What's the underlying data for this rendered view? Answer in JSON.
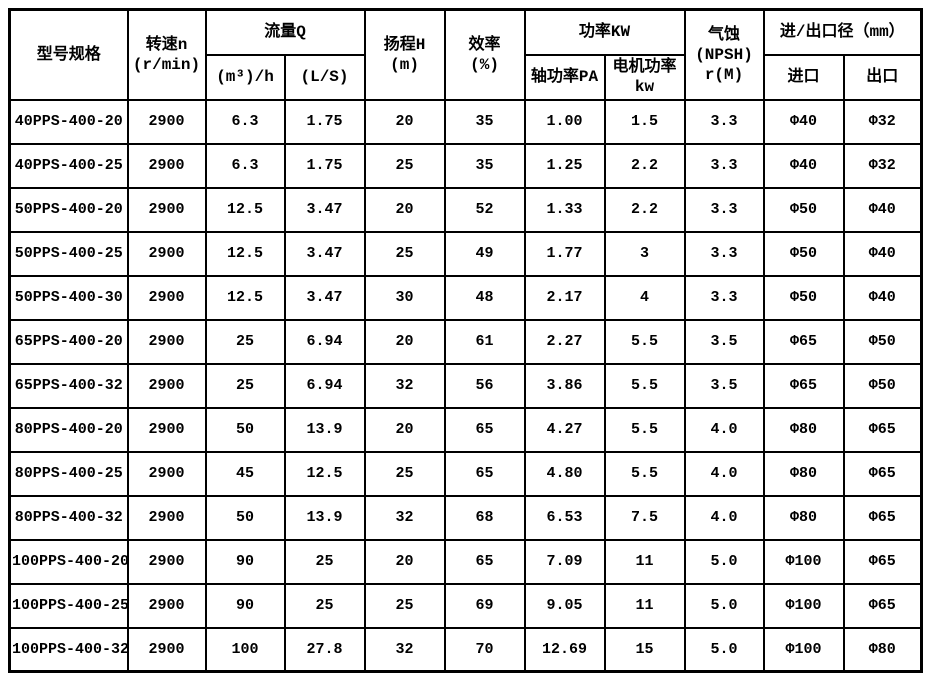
{
  "colors": {
    "border": "#000000",
    "background": "#ffffff",
    "text": "#000000"
  },
  "table": {
    "headers": {
      "model": "型号规格",
      "speed": "转速n",
      "speed_unit": "(r/min)",
      "flow": "流量Q",
      "flow_m3h": "(m³)/h",
      "flow_ls": "(L/S)",
      "head": "扬程H",
      "head_unit": "(m)",
      "efficiency": "效率",
      "efficiency_unit": "(%)",
      "power": "功率KW",
      "shaft_power": "轴功率PA",
      "motor_power": "电机功率",
      "motor_power_unit": "kw",
      "npsh_line1": "气蚀",
      "npsh_line2": "(NPSH)",
      "npsh_line3": "r(M)",
      "ports": "进/出口径（mm）",
      "inlet": "进口",
      "outlet": "出口"
    },
    "column_keys": [
      "model",
      "speed",
      "flow-m3h",
      "flow-ls",
      "head",
      "efficiency",
      "shaft-power",
      "motor-power",
      "npsh",
      "inlet",
      "outlet"
    ],
    "rows": [
      [
        "40PPS-400-20",
        "2900",
        "6.3",
        "1.75",
        "20",
        "35",
        "1.00",
        "1.5",
        "3.3",
        "Φ40",
        "Φ32"
      ],
      [
        "40PPS-400-25",
        "2900",
        "6.3",
        "1.75",
        "25",
        "35",
        "1.25",
        "2.2",
        "3.3",
        "Φ40",
        "Φ32"
      ],
      [
        "50PPS-400-20",
        "2900",
        "12.5",
        "3.47",
        "20",
        "52",
        "1.33",
        "2.2",
        "3.3",
        "Φ50",
        "Φ40"
      ],
      [
        "50PPS-400-25",
        "2900",
        "12.5",
        "3.47",
        "25",
        "49",
        "1.77",
        "3",
        "3.3",
        "Φ50",
        "Φ40"
      ],
      [
        "50PPS-400-30",
        "2900",
        "12.5",
        "3.47",
        "30",
        "48",
        "2.17",
        "4",
        "3.3",
        "Φ50",
        "Φ40"
      ],
      [
        "65PPS-400-20",
        "2900",
        "25",
        "6.94",
        "20",
        "61",
        "2.27",
        "5.5",
        "3.5",
        "Φ65",
        "Φ50"
      ],
      [
        "65PPS-400-32",
        "2900",
        "25",
        "6.94",
        "32",
        "56",
        "3.86",
        "5.5",
        "3.5",
        "Φ65",
        "Φ50"
      ],
      [
        "80PPS-400-20",
        "2900",
        "50",
        "13.9",
        "20",
        "65",
        "4.27",
        "5.5",
        "4.0",
        "Φ80",
        "Φ65"
      ],
      [
        "80PPS-400-25",
        "2900",
        "45",
        "12.5",
        "25",
        "65",
        "4.80",
        "5.5",
        "4.0",
        "Φ80",
        "Φ65"
      ],
      [
        "80PPS-400-32",
        "2900",
        "50",
        "13.9",
        "32",
        "68",
        "6.53",
        "7.5",
        "4.0",
        "Φ80",
        "Φ65"
      ],
      [
        "100PPS-400-20",
        "2900",
        "90",
        "25",
        "20",
        "65",
        "7.09",
        "11",
        "5.0",
        "Φ100",
        "Φ65"
      ],
      [
        "100PPS-400-25",
        "2900",
        "90",
        "25",
        "25",
        "69",
        "9.05",
        "11",
        "5.0",
        "Φ100",
        "Φ65"
      ],
      [
        "100PPS-400-32",
        "2900",
        "100",
        "27.8",
        "32",
        "70",
        "12.69",
        "15",
        "5.0",
        "Φ100",
        "Φ80"
      ]
    ]
  }
}
